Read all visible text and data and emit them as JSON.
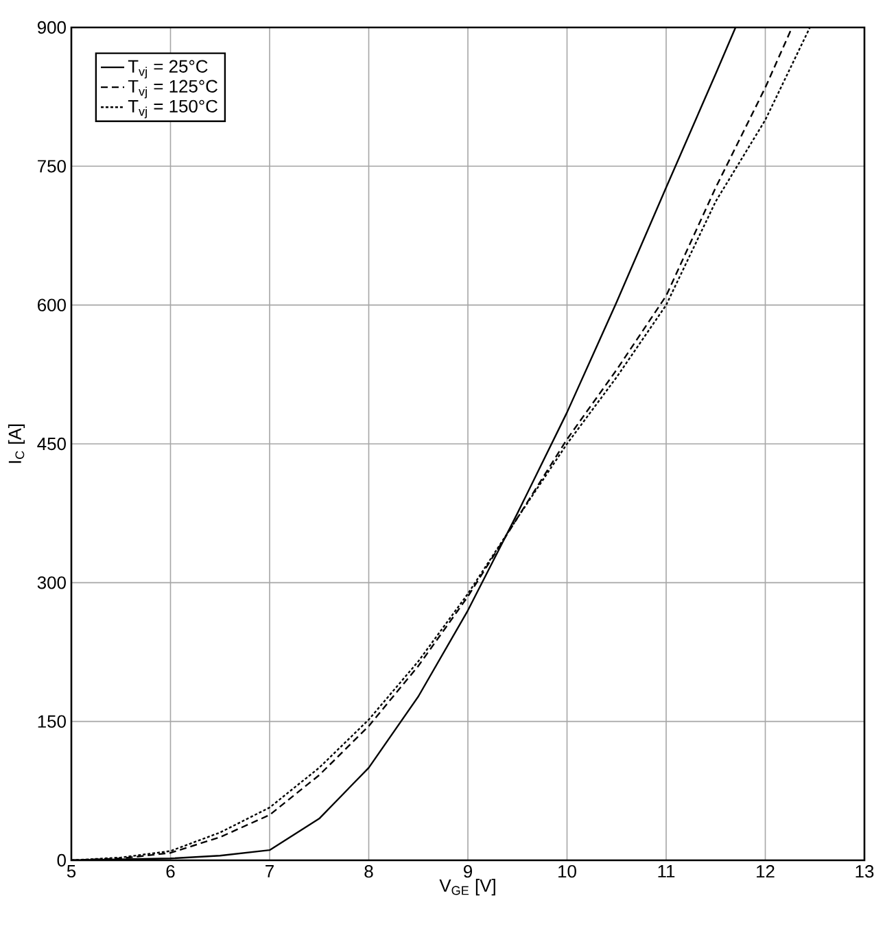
{
  "chart_data": {
    "type": "line",
    "xlabel": "V$_{GE}$ [V]",
    "ylabel": "I$_{C}$ [A]",
    "xlim": [
      5,
      13
    ],
    "xticks": [
      5,
      6,
      7,
      8,
      9,
      10,
      11,
      12,
      13
    ],
    "ylim": [
      0,
      900
    ],
    "yticks": [
      0,
      150,
      300,
      450,
      600,
      750,
      900
    ],
    "grid": true,
    "legend": "top left",
    "marker": "none",
    "series": [
      {
        "name": "T$_{vj}$ = 25°C",
        "color": "#000000",
        "line_style": "solid",
        "x": [
          5,
          5.5,
          6,
          6.5,
          7,
          7.5,
          8,
          8.5,
          9,
          9.5,
          10,
          10.5,
          11,
          11.5,
          11.7
        ],
        "values": [
          0,
          1,
          2,
          5,
          11,
          45,
          100,
          177,
          270,
          375,
          484,
          603,
          727,
          850,
          900
        ]
      },
      {
        "name": "T$_{vj}$ = 125°C",
        "color": "#000000",
        "line_style": "dashed",
        "x": [
          5,
          5.5,
          6,
          6.5,
          7,
          7.5,
          8,
          8.5,
          9,
          9.5,
          10,
          10.5,
          11,
          11.5,
          12,
          12.27
        ],
        "values": [
          0,
          2,
          8,
          25,
          49,
          92,
          145,
          210,
          285,
          370,
          455,
          530,
          610,
          727,
          835,
          900
        ]
      },
      {
        "name": "T$_{vj}$ = 150°C",
        "color": "#000000",
        "line_style": "dotted",
        "x": [
          5,
          5.5,
          6,
          6.5,
          7,
          7.5,
          8,
          8.5,
          9,
          9.5,
          10,
          10.5,
          11,
          11.5,
          12,
          12.45
        ],
        "values": [
          0,
          3,
          10,
          30,
          57,
          100,
          152,
          215,
          288,
          370,
          450,
          522,
          600,
          712,
          800,
          900
        ]
      }
    ]
  }
}
